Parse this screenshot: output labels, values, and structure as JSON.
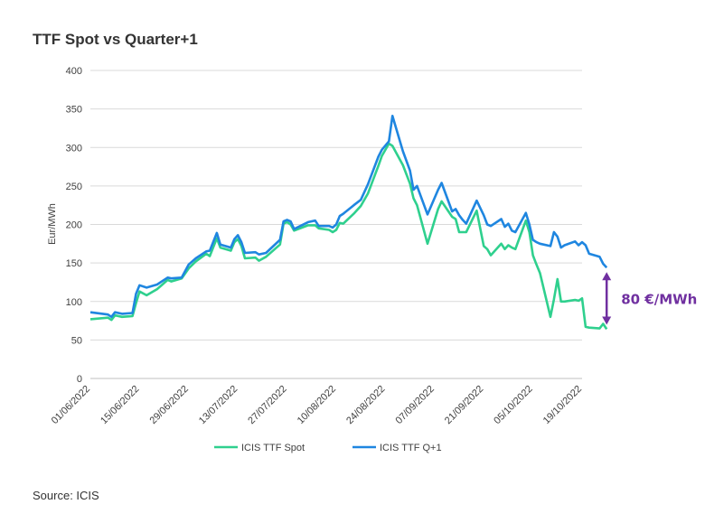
{
  "chart_data": {
    "type": "line",
    "title": "TTF Spot vs Quarter+1",
    "ylabel": "Eur/MWh",
    "xlabel": "",
    "ylim": [
      0,
      400
    ],
    "yticks": [
      "0",
      "50",
      "100",
      "150",
      "200",
      "250",
      "300",
      "350",
      "400"
    ],
    "xlim": [
      "01/06/2022",
      "19/10/2022"
    ],
    "xticks": [
      "01/06/2022",
      "15/06/2022",
      "29/06/2022",
      "13/07/2022",
      "27/07/2022",
      "10/08/2022",
      "24/08/2022",
      "07/09/2022",
      "21/09/2022",
      "05/10/2022",
      "19/10/2022"
    ],
    "grid": "horizontal",
    "legend_position": "bottom",
    "series": [
      {
        "name": "ICIS TTF Spot",
        "color": "#2fd08e",
        "points": [
          [
            "01/06/2022",
            77
          ],
          [
            "06/06/2022",
            79
          ],
          [
            "07/06/2022",
            76
          ],
          [
            "08/06/2022",
            82
          ],
          [
            "10/06/2022",
            80
          ],
          [
            "13/06/2022",
            81
          ],
          [
            "14/06/2022",
            98
          ],
          [
            "15/06/2022",
            113
          ],
          [
            "17/06/2022",
            108
          ],
          [
            "20/06/2022",
            116
          ],
          [
            "23/06/2022",
            128
          ],
          [
            "24/06/2022",
            126
          ],
          [
            "27/06/2022",
            130
          ],
          [
            "29/06/2022",
            143
          ],
          [
            "01/07/2022",
            152
          ],
          [
            "04/07/2022",
            162
          ],
          [
            "05/07/2022",
            159
          ],
          [
            "07/07/2022",
            182
          ],
          [
            "08/07/2022",
            170
          ],
          [
            "11/07/2022",
            166
          ],
          [
            "12/07/2022",
            177
          ],
          [
            "13/07/2022",
            181
          ],
          [
            "14/07/2022",
            172
          ],
          [
            "15/07/2022",
            156
          ],
          [
            "18/07/2022",
            157
          ],
          [
            "19/07/2022",
            153
          ],
          [
            "21/07/2022",
            158
          ],
          [
            "25/07/2022",
            174
          ],
          [
            "26/07/2022",
            201
          ],
          [
            "27/07/2022",
            203
          ],
          [
            "28/07/2022",
            200
          ],
          [
            "29/07/2022",
            192
          ],
          [
            "02/08/2022",
            199
          ],
          [
            "04/08/2022",
            199
          ],
          [
            "05/08/2022",
            195
          ],
          [
            "08/08/2022",
            193
          ],
          [
            "09/08/2022",
            190
          ],
          [
            "10/08/2022",
            193
          ],
          [
            "11/08/2022",
            202
          ],
          [
            "12/08/2022",
            201
          ],
          [
            "15/08/2022",
            214
          ],
          [
            "17/08/2022",
            224
          ],
          [
            "19/08/2022",
            240
          ],
          [
            "22/08/2022",
            276
          ],
          [
            "23/08/2022",
            289
          ],
          [
            "25/08/2022",
            305
          ],
          [
            "26/08/2022",
            302
          ],
          [
            "29/08/2022",
            277
          ],
          [
            "31/08/2022",
            253
          ],
          [
            "01/09/2022",
            234
          ],
          [
            "02/09/2022",
            225
          ],
          [
            "05/09/2022",
            175
          ],
          [
            "08/09/2022",
            220
          ],
          [
            "09/09/2022",
            230
          ],
          [
            "12/09/2022",
            210
          ],
          [
            "13/09/2022",
            207
          ],
          [
            "14/09/2022",
            190
          ],
          [
            "15/09/2022",
            190
          ],
          [
            "16/09/2022",
            190
          ],
          [
            "19/09/2022",
            218
          ],
          [
            "21/09/2022",
            172
          ],
          [
            "22/09/2022",
            168
          ],
          [
            "23/09/2022",
            160
          ],
          [
            "26/09/2022",
            175
          ],
          [
            "27/09/2022",
            168
          ],
          [
            "28/09/2022",
            173
          ],
          [
            "29/09/2022",
            170
          ],
          [
            "30/09/2022",
            168
          ],
          [
            "03/10/2022",
            205
          ],
          [
            "04/10/2022",
            190
          ],
          [
            "05/10/2022",
            160
          ],
          [
            "06/10/2022",
            148
          ],
          [
            "07/10/2022",
            137
          ],
          [
            "10/10/2022",
            80
          ],
          [
            "11/10/2022",
            103
          ],
          [
            "12/10/2022",
            129
          ],
          [
            "13/10/2022",
            100
          ],
          [
            "14/10/2022",
            100
          ],
          [
            "17/10/2022",
            102
          ],
          [
            "18/10/2022",
            101
          ],
          [
            "19/10/2022",
            104
          ],
          [
            "20/10/2022",
            67
          ],
          [
            "21/10/2022",
            66
          ],
          [
            "24/10/2022",
            65
          ],
          [
            "25/10/2022",
            71
          ],
          [
            "26/10/2022",
            64
          ]
        ]
      },
      {
        "name": "ICIS TTF Q+1",
        "color": "#1f86e0",
        "points": [
          [
            "01/06/2022",
            86
          ],
          [
            "06/06/2022",
            83
          ],
          [
            "07/06/2022",
            80
          ],
          [
            "08/06/2022",
            86
          ],
          [
            "10/06/2022",
            84
          ],
          [
            "13/06/2022",
            85
          ],
          [
            "14/06/2022",
            110
          ],
          [
            "15/06/2022",
            121
          ],
          [
            "17/06/2022",
            118
          ],
          [
            "20/06/2022",
            122
          ],
          [
            "23/06/2022",
            131
          ],
          [
            "24/06/2022",
            130
          ],
          [
            "27/06/2022",
            131
          ],
          [
            "29/06/2022",
            148
          ],
          [
            "01/07/2022",
            156
          ],
          [
            "04/07/2022",
            165
          ],
          [
            "05/07/2022",
            166
          ],
          [
            "07/07/2022",
            189
          ],
          [
            "08/07/2022",
            174
          ],
          [
            "11/07/2022",
            170
          ],
          [
            "12/07/2022",
            181
          ],
          [
            "13/07/2022",
            186
          ],
          [
            "14/07/2022",
            177
          ],
          [
            "15/07/2022",
            163
          ],
          [
            "18/07/2022",
            164
          ],
          [
            "19/07/2022",
            161
          ],
          [
            "21/07/2022",
            163
          ],
          [
            "25/07/2022",
            180
          ],
          [
            "26/07/2022",
            204
          ],
          [
            "27/07/2022",
            206
          ],
          [
            "28/07/2022",
            204
          ],
          [
            "29/07/2022",
            194
          ],
          [
            "02/08/2022",
            203
          ],
          [
            "04/08/2022",
            205
          ],
          [
            "05/08/2022",
            198
          ],
          [
            "08/08/2022",
            198
          ],
          [
            "09/08/2022",
            196
          ],
          [
            "10/08/2022",
            200
          ],
          [
            "11/08/2022",
            211
          ],
          [
            "12/08/2022",
            214
          ],
          [
            "15/08/2022",
            225
          ],
          [
            "17/08/2022",
            232
          ],
          [
            "19/08/2022",
            252
          ],
          [
            "22/08/2022",
            288
          ],
          [
            "23/08/2022",
            297
          ],
          [
            "25/08/2022",
            308
          ],
          [
            "26/08/2022",
            341
          ],
          [
            "29/08/2022",
            295
          ],
          [
            "31/08/2022",
            270
          ],
          [
            "01/09/2022",
            245
          ],
          [
            "02/09/2022",
            250
          ],
          [
            "05/09/2022",
            213
          ],
          [
            "08/09/2022",
            245
          ],
          [
            "09/09/2022",
            254
          ],
          [
            "12/09/2022",
            217
          ],
          [
            "13/09/2022",
            220
          ],
          [
            "14/09/2022",
            212
          ],
          [
            "15/09/2022",
            206
          ],
          [
            "16/09/2022",
            201
          ],
          [
            "19/09/2022",
            231
          ],
          [
            "21/09/2022",
            212
          ],
          [
            "22/09/2022",
            200
          ],
          [
            "23/09/2022",
            198
          ],
          [
            "26/09/2022",
            207
          ],
          [
            "27/09/2022",
            197
          ],
          [
            "28/09/2022",
            201
          ],
          [
            "29/09/2022",
            192
          ],
          [
            "30/09/2022",
            190
          ],
          [
            "03/10/2022",
            215
          ],
          [
            "04/10/2022",
            200
          ],
          [
            "05/10/2022",
            180
          ],
          [
            "06/10/2022",
            177
          ],
          [
            "07/10/2022",
            175
          ],
          [
            "10/10/2022",
            172
          ],
          [
            "11/10/2022",
            190
          ],
          [
            "12/10/2022",
            184
          ],
          [
            "13/10/2022",
            170
          ],
          [
            "14/10/2022",
            173
          ],
          [
            "17/10/2022",
            178
          ],
          [
            "18/10/2022",
            173
          ],
          [
            "19/10/2022",
            177
          ],
          [
            "20/10/2022",
            173
          ],
          [
            "21/10/2022",
            162
          ],
          [
            "24/10/2022",
            158
          ],
          [
            "25/10/2022",
            149
          ],
          [
            "26/10/2022",
            144
          ]
        ]
      }
    ],
    "annotations": [
      {
        "text": "80 €/MWh",
        "color": "#7030a0",
        "from_value": 144,
        "to_value": 64,
        "x_date": "26/10/2022"
      }
    ]
  },
  "source": "Source: ICIS"
}
